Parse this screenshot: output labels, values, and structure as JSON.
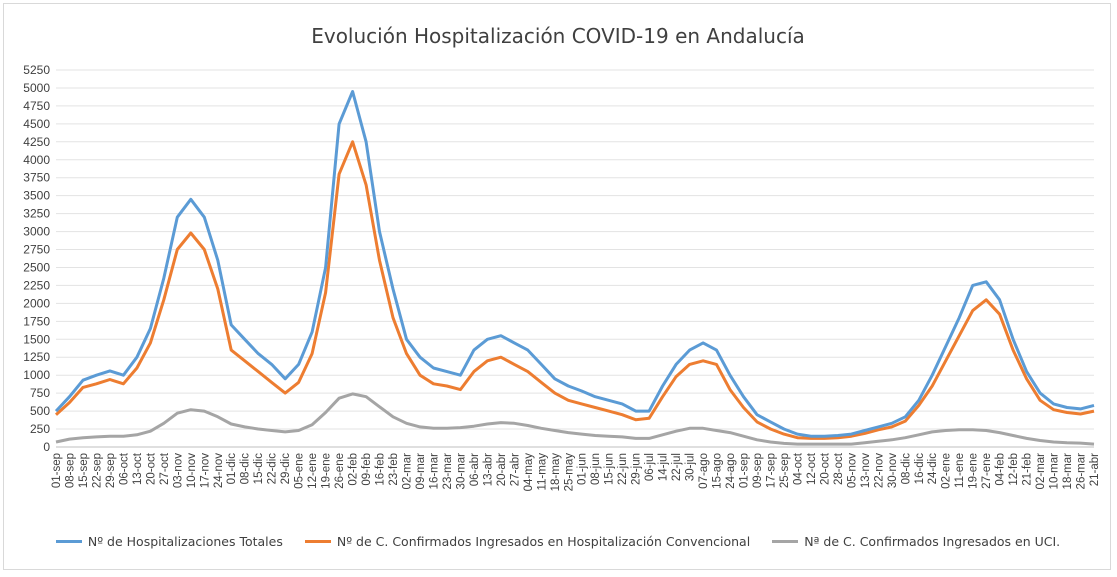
{
  "chart_data": {
    "type": "line",
    "title": "Evolución Hospitalización COVID-19 en Andalucía",
    "ylim": [
      0,
      5250
    ],
    "yticks": [
      0,
      250,
      500,
      750,
      1000,
      1250,
      1500,
      1750,
      2000,
      2250,
      2500,
      2750,
      3000,
      3250,
      3500,
      3750,
      4000,
      4250,
      4500,
      4750,
      5000,
      5250
    ],
    "grid": true,
    "legend_position": "bottom",
    "x": [
      "01-sep",
      "08-sep",
      "15-sep",
      "22-sep",
      "29-sep",
      "06-oct",
      "13-oct",
      "20-oct",
      "27-oct",
      "03-nov",
      "10-nov",
      "17-nov",
      "24-nov",
      "01-dic",
      "08-dic",
      "15-dic",
      "22-dic",
      "29-dic",
      "05-ene",
      "12-ene",
      "19-ene",
      "26-ene",
      "02-feb",
      "09-feb",
      "16-feb",
      "23-feb",
      "02-mar",
      "09-mar",
      "16-mar",
      "23-mar",
      "30-mar",
      "06-abr",
      "13-abr",
      "20-abr",
      "27-abr",
      "04-may",
      "11-may",
      "18-may",
      "25-may",
      "01-jun",
      "08-jun",
      "15-jun",
      "22-jun",
      "29-jun",
      "06-jul",
      "14-jul",
      "22-jul",
      "30-jul",
      "07-ago",
      "15-ago",
      "24-ago",
      "01-sep",
      "09-sep",
      "17-sep",
      "25-sep",
      "04-oct",
      "12-oct",
      "20-oct",
      "28-oct",
      "05-nov",
      "13-nov",
      "22-nov",
      "30-nov",
      "08-dic",
      "16-dic",
      "24-dic",
      "02-ene",
      "11-ene",
      "19-ene",
      "27-ene",
      "04-feb",
      "12-feb",
      "21-feb",
      "02-mar",
      "10-mar",
      "18-mar",
      "26-mar",
      "21-abr"
    ],
    "series": [
      {
        "name": "Nº de Hospitalizaciones Totales",
        "color": "#5b9bd5",
        "values": [
          500,
          700,
          930,
          1000,
          1060,
          1000,
          1250,
          1650,
          2350,
          3200,
          3450,
          3200,
          2600,
          1700,
          1500,
          1300,
          1150,
          950,
          1150,
          1600,
          2500,
          4500,
          4950,
          4250,
          3000,
          2200,
          1500,
          1250,
          1100,
          1050,
          1000,
          1350,
          1500,
          1550,
          1450,
          1350,
          1150,
          950,
          850,
          780,
          700,
          650,
          600,
          500,
          500,
          850,
          1150,
          1350,
          1450,
          1350,
          1000,
          700,
          450,
          350,
          250,
          180,
          150,
          150,
          160,
          180,
          230,
          280,
          330,
          420,
          650,
          1000,
          1400,
          1800,
          2250,
          2300,
          2050,
          1500,
          1050,
          750,
          600,
          550,
          530,
          580
        ]
      },
      {
        "name": "Nº de C. Confirmados Ingresados en Hospitalización Convencional",
        "color": "#ed7d31",
        "values": [
          450,
          620,
          830,
          880,
          940,
          880,
          1100,
          1450,
          2050,
          2750,
          2980,
          2750,
          2200,
          1350,
          1200,
          1050,
          900,
          750,
          900,
          1300,
          2150,
          3800,
          4250,
          3650,
          2600,
          1800,
          1300,
          1000,
          880,
          850,
          800,
          1050,
          1200,
          1250,
          1150,
          1050,
          900,
          750,
          650,
          600,
          550,
          500,
          450,
          380,
          400,
          700,
          980,
          1150,
          1200,
          1150,
          800,
          550,
          350,
          250,
          180,
          130,
          120,
          120,
          130,
          150,
          190,
          240,
          280,
          360,
          580,
          850,
          1200,
          1550,
          1900,
          2050,
          1850,
          1350,
          950,
          650,
          520,
          480,
          460,
          500
        ]
      },
      {
        "name": "Nª de C. Confirmados Ingresados en UCI.",
        "color": "#a5a5a5",
        "values": [
          70,
          110,
          130,
          140,
          150,
          150,
          170,
          220,
          330,
          470,
          520,
          500,
          420,
          320,
          280,
          250,
          230,
          210,
          230,
          310,
          480,
          680,
          740,
          700,
          560,
          420,
          330,
          280,
          260,
          260,
          270,
          290,
          320,
          340,
          330,
          300,
          260,
          230,
          200,
          180,
          160,
          150,
          140,
          120,
          120,
          170,
          220,
          260,
          260,
          230,
          200,
          150,
          100,
          70,
          50,
          40,
          40,
          40,
          40,
          40,
          60,
          80,
          100,
          130,
          170,
          210,
          230,
          240,
          240,
          230,
          200,
          160,
          120,
          90,
          70,
          60,
          55,
          40
        ]
      }
    ]
  }
}
